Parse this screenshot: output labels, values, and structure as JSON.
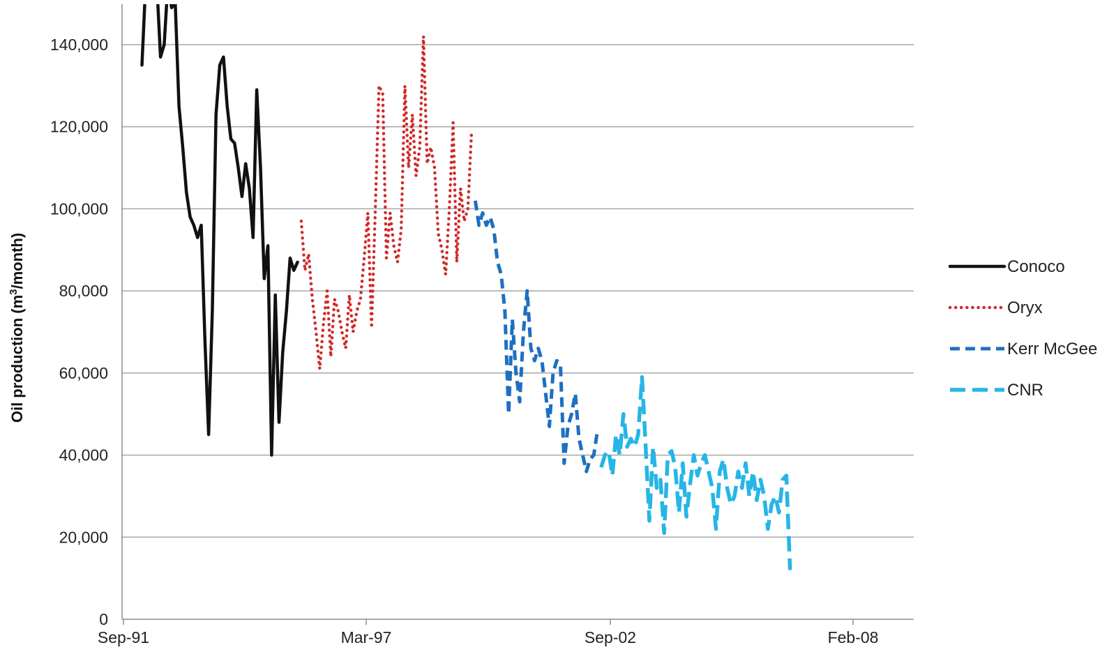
{
  "chart_data": {
    "type": "line",
    "title": "",
    "xlabel": "",
    "ylabel": "Oil production (m",
    "ylabel_sup": "3",
    "ylabel_tail": "/month)",
    "ylim": [
      0,
      150000
    ],
    "yticks": [
      0,
      20000,
      40000,
      60000,
      80000,
      100000,
      120000,
      140000
    ],
    "ytick_labels": [
      "0",
      "20,000",
      "40,000",
      "60,000",
      "80,000",
      "100,000",
      "120,000",
      "140,000"
    ],
    "xlim": [
      "1991-09",
      "2008-10"
    ],
    "xticks": [
      "1991-09",
      "1997-03",
      "2002-09",
      "2008-02"
    ],
    "xtick_labels": [
      "Sep-91",
      "Mar-97",
      "Sep-02",
      "Feb-08"
    ],
    "grid": "horizontal",
    "legend_position": "right",
    "series": [
      {
        "name": "Conoco",
        "color": "#111111",
        "dash": "solid",
        "points": [
          [
            "1992-02",
            135000
          ],
          [
            "1992-03",
            155000
          ],
          [
            "1992-04",
            155000
          ],
          [
            "1992-06",
            155000
          ],
          [
            "1992-07",
            137000
          ],
          [
            "1992-08",
            140000
          ],
          [
            "1992-09",
            155000
          ],
          [
            "1992-10",
            149000
          ],
          [
            "1992-11",
            150000
          ],
          [
            "1992-12",
            125000
          ],
          [
            "1993-01",
            115000
          ],
          [
            "1993-02",
            104000
          ],
          [
            "1993-03",
            98000
          ],
          [
            "1993-04",
            96000
          ],
          [
            "1993-05",
            93000
          ],
          [
            "1993-06",
            96000
          ],
          [
            "1993-07",
            68000
          ],
          [
            "1993-08",
            45000
          ],
          [
            "1993-09",
            75000
          ],
          [
            "1993-10",
            123000
          ],
          [
            "1993-11",
            135000
          ],
          [
            "1993-12",
            137000
          ],
          [
            "1994-01",
            125000
          ],
          [
            "1994-02",
            117000
          ],
          [
            "1994-03",
            116000
          ],
          [
            "1994-04",
            110000
          ],
          [
            "1994-05",
            103000
          ],
          [
            "1994-06",
            111000
          ],
          [
            "1994-07",
            105000
          ],
          [
            "1994-08",
            93000
          ],
          [
            "1994-09",
            129000
          ],
          [
            "1994-10",
            110000
          ],
          [
            "1994-11",
            83000
          ],
          [
            "1994-12",
            91000
          ],
          [
            "1995-01",
            40000
          ],
          [
            "1995-02",
            79000
          ],
          [
            "1995-03",
            48000
          ],
          [
            "1995-04",
            65000
          ],
          [
            "1995-05",
            75000
          ],
          [
            "1995-06",
            88000
          ],
          [
            "1995-07",
            85000
          ],
          [
            "1995-08",
            87000
          ]
        ]
      },
      {
        "name": "Oryx",
        "color": "#d02a2a",
        "dash": "dotted",
        "points": [
          [
            "1995-09",
            97000
          ],
          [
            "1995-10",
            85000
          ],
          [
            "1995-11",
            89000
          ],
          [
            "1995-12",
            78000
          ],
          [
            "1996-01",
            70000
          ],
          [
            "1996-02",
            61000
          ],
          [
            "1996-03",
            72000
          ],
          [
            "1996-04",
            80000
          ],
          [
            "1996-05",
            64000
          ],
          [
            "1996-06",
            78000
          ],
          [
            "1996-07",
            75000
          ],
          [
            "1996-08",
            70000
          ],
          [
            "1996-09",
            66000
          ],
          [
            "1996-10",
            79000
          ],
          [
            "1996-11",
            70000
          ],
          [
            "1996-12",
            75000
          ],
          [
            "1997-01",
            78000
          ],
          [
            "1997-02",
            88000
          ],
          [
            "1997-03",
            99000
          ],
          [
            "1997-04",
            71000
          ],
          [
            "1997-05",
            100000
          ],
          [
            "1997-06",
            130000
          ],
          [
            "1997-07",
            128000
          ],
          [
            "1997-08",
            88000
          ],
          [
            "1997-09",
            99000
          ],
          [
            "1997-10",
            91000
          ],
          [
            "1997-11",
            87000
          ],
          [
            "1997-12",
            95000
          ],
          [
            "1998-01",
            130000
          ],
          [
            "1998-02",
            110000
          ],
          [
            "1998-03",
            123000
          ],
          [
            "1998-04",
            108000
          ],
          [
            "1998-05",
            115000
          ],
          [
            "1998-06",
            142000
          ],
          [
            "1998-07",
            111000
          ],
          [
            "1998-08",
            115000
          ],
          [
            "1998-09",
            110000
          ],
          [
            "1998-10",
            94000
          ],
          [
            "1998-11",
            90000
          ],
          [
            "1998-12",
            84000
          ],
          [
            "1999-01",
            100000
          ],
          [
            "1999-02",
            121000
          ],
          [
            "1999-03",
            87000
          ],
          [
            "1999-04",
            105000
          ],
          [
            "1999-05",
            97000
          ],
          [
            "1999-06",
            100000
          ],
          [
            "1999-07",
            119000
          ]
        ]
      },
      {
        "name": "Kerr McGee",
        "color": "#1e6fc0",
        "dash": "dashed",
        "points": [
          [
            "1999-08",
            102000
          ],
          [
            "1999-09",
            96000
          ],
          [
            "1999-10",
            99000
          ],
          [
            "1999-11",
            96000
          ],
          [
            "1999-12",
            98000
          ],
          [
            "2000-01",
            95000
          ],
          [
            "2000-02",
            87000
          ],
          [
            "2000-03",
            84000
          ],
          [
            "2000-04",
            75000
          ],
          [
            "2000-05",
            50000
          ],
          [
            "2000-06",
            73000
          ],
          [
            "2000-07",
            60000
          ],
          [
            "2000-08",
            53000
          ],
          [
            "2000-09",
            70000
          ],
          [
            "2000-10",
            80000
          ],
          [
            "2000-11",
            66000
          ],
          [
            "2000-12",
            63000
          ],
          [
            "2001-01",
            66000
          ],
          [
            "2001-02",
            63000
          ],
          [
            "2001-03",
            55000
          ],
          [
            "2001-04",
            47000
          ],
          [
            "2001-05",
            60000
          ],
          [
            "2001-06",
            63000
          ],
          [
            "2001-07",
            62000
          ],
          [
            "2001-08",
            38000
          ],
          [
            "2001-09",
            47000
          ],
          [
            "2001-10",
            50000
          ],
          [
            "2001-11",
            55000
          ],
          [
            "2001-12",
            44000
          ],
          [
            "2002-01",
            40000
          ],
          [
            "2002-02",
            36000
          ],
          [
            "2002-03",
            39000
          ],
          [
            "2002-04",
            40000
          ],
          [
            "2002-05",
            46000
          ]
        ]
      },
      {
        "name": "CNR",
        "color": "#26b5e6",
        "dash": "longdash",
        "points": [
          [
            "2002-06",
            37000
          ],
          [
            "2002-07",
            40000
          ],
          [
            "2002-08",
            41000
          ],
          [
            "2002-09",
            35000
          ],
          [
            "2002-10",
            45000
          ],
          [
            "2002-11",
            40000
          ],
          [
            "2002-12",
            50000
          ],
          [
            "2003-01",
            42000
          ],
          [
            "2003-02",
            44000
          ],
          [
            "2003-03",
            42000
          ],
          [
            "2003-04",
            45000
          ],
          [
            "2003-05",
            59000
          ],
          [
            "2003-06",
            42000
          ],
          [
            "2003-07",
            24000
          ],
          [
            "2003-08",
            42000
          ],
          [
            "2003-09",
            32000
          ],
          [
            "2003-10",
            34000
          ],
          [
            "2003-11",
            21000
          ],
          [
            "2003-12",
            40000
          ],
          [
            "2004-01",
            41000
          ],
          [
            "2004-02",
            37000
          ],
          [
            "2004-03",
            26000
          ],
          [
            "2004-04",
            38000
          ],
          [
            "2004-05",
            25000
          ],
          [
            "2004-06",
            33000
          ],
          [
            "2004-07",
            40000
          ],
          [
            "2004-08",
            35000
          ],
          [
            "2004-09",
            38000
          ],
          [
            "2004-10",
            40000
          ],
          [
            "2004-11",
            36000
          ],
          [
            "2004-12",
            32000
          ],
          [
            "2005-01",
            22000
          ],
          [
            "2005-02",
            36000
          ],
          [
            "2005-03",
            39000
          ],
          [
            "2005-04",
            32000
          ],
          [
            "2005-05",
            28000
          ],
          [
            "2005-06",
            30000
          ],
          [
            "2005-07",
            36000
          ],
          [
            "2005-08",
            32000
          ],
          [
            "2005-09",
            38000
          ],
          [
            "2005-10",
            30000
          ],
          [
            "2005-11",
            36000
          ],
          [
            "2005-12",
            29000
          ],
          [
            "2006-01",
            34000
          ],
          [
            "2006-02",
            30000
          ],
          [
            "2006-03",
            22000
          ],
          [
            "2006-04",
            28000
          ],
          [
            "2006-05",
            30000
          ],
          [
            "2006-06",
            26000
          ],
          [
            "2006-07",
            34000
          ],
          [
            "2006-08",
            35000
          ],
          [
            "2006-09",
            12000
          ]
        ]
      }
    ]
  }
}
